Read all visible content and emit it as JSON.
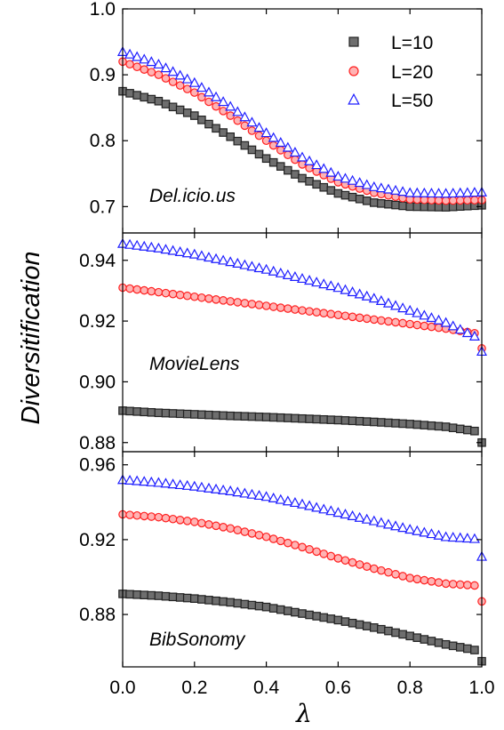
{
  "chart_data": {
    "type": "scatter",
    "ylabel": "Diversitification",
    "xlabel": "λ",
    "xlim": [
      0.0,
      1.0
    ],
    "xticks": [
      "0.0",
      "0.2",
      "0.4",
      "0.6",
      "0.8",
      "1.0"
    ],
    "legend": {
      "placement": "top-right of first panel",
      "entries": [
        {
          "label": "L=10",
          "marker": "square",
          "color": "#555555"
        },
        {
          "label": "L=20",
          "marker": "circle",
          "color": "#ff2a2a"
        },
        {
          "label": "L=50",
          "marker": "triangle",
          "color": "#2a2aff"
        }
      ]
    },
    "panels": [
      {
        "title": "Del.icio.us",
        "ylim": [
          0.66,
          1.0
        ],
        "yticks": [
          "0.7",
          "0.8",
          "0.9",
          "1.0"
        ],
        "series": [
          {
            "name": "L=10",
            "x": [
              0.0,
              0.1,
              0.2,
              0.3,
              0.4,
              0.5,
              0.6,
              0.7,
              0.8,
              0.9,
              1.0
            ],
            "values": [
              0.875,
              0.86,
              0.838,
              0.806,
              0.773,
              0.743,
              0.72,
              0.706,
              0.7,
              0.699,
              0.702
            ]
          },
          {
            "name": "L=20",
            "x": [
              0.0,
              0.1,
              0.2,
              0.3,
              0.4,
              0.5,
              0.6,
              0.7,
              0.8,
              0.9,
              1.0
            ],
            "values": [
              0.92,
              0.9,
              0.873,
              0.838,
              0.8,
              0.764,
              0.737,
              0.721,
              0.711,
              0.709,
              0.71
            ]
          },
          {
            "name": "L=50",
            "x": [
              0.0,
              0.1,
              0.2,
              0.3,
              0.4,
              0.5,
              0.6,
              0.7,
              0.8,
              0.9,
              1.0
            ],
            "values": [
              0.935,
              0.916,
              0.888,
              0.852,
              0.812,
              0.775,
              0.746,
              0.73,
              0.721,
              0.72,
              0.722
            ]
          }
        ]
      },
      {
        "title": "MovieLens",
        "ylim": [
          0.877,
          0.949
        ],
        "yticks": [
          "0.88",
          "0.90",
          "0.92",
          "0.94"
        ],
        "series": [
          {
            "name": "L=10",
            "x": [
              0.0,
              0.1,
              0.2,
              0.3,
              0.4,
              0.5,
              0.6,
              0.7,
              0.8,
              0.9,
              0.98,
              1.0
            ],
            "values": [
              0.8905,
              0.8898,
              0.8893,
              0.8888,
              0.8884,
              0.8879,
              0.8874,
              0.8868,
              0.8861,
              0.8852,
              0.8838,
              0.88
            ]
          },
          {
            "name": "L=20",
            "x": [
              0.0,
              0.1,
              0.2,
              0.3,
              0.4,
              0.5,
              0.6,
              0.7,
              0.8,
              0.9,
              0.98,
              1.0
            ],
            "values": [
              0.931,
              0.9295,
              0.928,
              0.9265,
              0.925,
              0.9235,
              0.922,
              0.9205,
              0.919,
              0.9175,
              0.916,
              0.911
            ]
          },
          {
            "name": "L=50",
            "x": [
              0.0,
              0.1,
              0.2,
              0.3,
              0.4,
              0.5,
              0.6,
              0.7,
              0.8,
              0.9,
              0.98,
              1.0
            ],
            "values": [
              0.9455,
              0.944,
              0.942,
              0.9395,
              0.937,
              0.934,
              0.931,
              0.9275,
              0.9235,
              0.9195,
              0.915,
              0.91
            ]
          }
        ]
      },
      {
        "title": "BibSonomy",
        "ylim": [
          0.852,
          0.967
        ],
        "yticks": [
          "0.88",
          "0.92",
          "0.96"
        ],
        "series": [
          {
            "name": "L=10",
            "x": [
              0.0,
              0.1,
              0.2,
              0.3,
              0.4,
              0.5,
              0.6,
              0.7,
              0.8,
              0.9,
              0.98,
              1.0
            ],
            "values": [
              0.891,
              0.89,
              0.8885,
              0.8865,
              0.884,
              0.8805,
              0.877,
              0.873,
              0.8685,
              0.864,
              0.861,
              0.855
            ]
          },
          {
            "name": "L=20",
            "x": [
              0.0,
              0.1,
              0.2,
              0.3,
              0.4,
              0.5,
              0.6,
              0.7,
              0.8,
              0.9,
              0.98,
              1.0
            ],
            "values": [
              0.9335,
              0.932,
              0.9295,
              0.926,
              0.9215,
              0.916,
              0.91,
              0.9045,
              0.8995,
              0.8965,
              0.8955,
              0.887
            ]
          },
          {
            "name": "L=50",
            "x": [
              0.0,
              0.1,
              0.2,
              0.3,
              0.4,
              0.5,
              0.6,
              0.7,
              0.8,
              0.9,
              0.98,
              1.0
            ],
            "values": [
              0.952,
              0.9505,
              0.9485,
              0.946,
              0.943,
              0.939,
              0.9345,
              0.93,
              0.9255,
              0.9215,
              0.9205,
              0.911
            ]
          }
        ]
      }
    ]
  }
}
